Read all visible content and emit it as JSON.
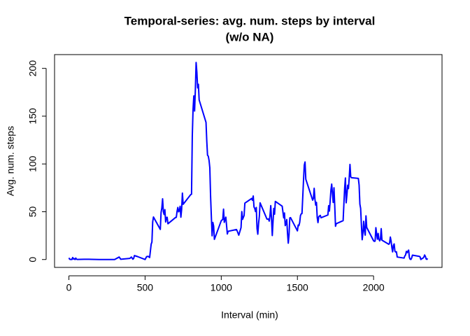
{
  "chart_data": {
    "type": "line",
    "title": "Temporal-series: avg. num. steps by interval",
    "subtitle": "(w/o NA)",
    "xlabel": "Interval (min)",
    "ylabel": "Avg. num. steps",
    "x": [
      0,
      5,
      10,
      15,
      20,
      25,
      30,
      35,
      40,
      45,
      50,
      55,
      100,
      150,
      200,
      300,
      330,
      340,
      400,
      410,
      420,
      425,
      430,
      450,
      500,
      510,
      520,
      530,
      540,
      545,
      550,
      555,
      600,
      605,
      610,
      615,
      620,
      625,
      630,
      635,
      640,
      645,
      650,
      700,
      705,
      710,
      715,
      720,
      725,
      730,
      735,
      740,
      745,
      750,
      800,
      805,
      810,
      815,
      820,
      825,
      830,
      835,
      840,
      845,
      850,
      855,
      900,
      905,
      910,
      915,
      920,
      925,
      930,
      935,
      940,
      945,
      950,
      955,
      1000,
      1010,
      1015,
      1020,
      1030,
      1040,
      1045,
      1100,
      1105,
      1115,
      1130,
      1135,
      1140,
      1150,
      1155,
      1200,
      1205,
      1210,
      1215,
      1220,
      1225,
      1230,
      1235,
      1240,
      1245,
      1250,
      1255,
      1300,
      1310,
      1315,
      1320,
      1325,
      1330,
      1335,
      1340,
      1345,
      1350,
      1355,
      1400,
      1410,
      1415,
      1420,
      1425,
      1430,
      1435,
      1440,
      1445,
      1450,
      1455,
      1500,
      1505,
      1510,
      1515,
      1520,
      1525,
      1530,
      1535,
      1540,
      1545,
      1550,
      1555,
      1600,
      1605,
      1610,
      1615,
      1620,
      1625,
      1630,
      1635,
      1640,
      1645,
      1650,
      1655,
      1700,
      1705,
      1710,
      1715,
      1720,
      1725,
      1730,
      1735,
      1740,
      1745,
      1750,
      1755,
      1800,
      1805,
      1810,
      1815,
      1820,
      1825,
      1830,
      1835,
      1840,
      1845,
      1850,
      1855,
      1900,
      1905,
      1910,
      1915,
      1920,
      1925,
      1930,
      1935,
      1940,
      1945,
      1950,
      1955,
      2000,
      2005,
      2010,
      2015,
      2020,
      2025,
      2030,
      2035,
      2040,
      2045,
      2050,
      2055,
      2100,
      2105,
      2110,
      2115,
      2120,
      2125,
      2130,
      2135,
      2140,
      2145,
      2150,
      2155,
      2200,
      2205,
      2210,
      2215,
      2220,
      2225,
      2230,
      2235,
      2240,
      2245,
      2250,
      2255,
      2300,
      2305,
      2310,
      2315,
      2320,
      2325,
      2330,
      2335,
      2340,
      2345,
      2350,
      2355
    ],
    "series": [
      {
        "name": "Avg. num. steps",
        "color": "#0000ff",
        "values": [
          1.7,
          0.3,
          0.1,
          0.2,
          0.1,
          2.1,
          0.5,
          0.9,
          0,
          1.5,
          0.3,
          0.1,
          0.3,
          0.2,
          0,
          0,
          2.6,
          0.3,
          1.2,
          2.6,
          0.3,
          1.1,
          4.1,
          3.1,
          0,
          3,
          3.3,
          2.1,
          16,
          18.3,
          39.4,
          44.5,
          31.5,
          49.3,
          53.8,
          63.5,
          50,
          47.1,
          52.2,
          39.3,
          44,
          44.2,
          37.4,
          44,
          44.1,
          50.5,
          54.5,
          49.9,
          51,
          55.7,
          44.3,
          52.3,
          69.5,
          57.8,
          68,
          68.3,
          129.4,
          157.5,
          171.2,
          155.4,
          177.3,
          206.2,
          195.9,
          179.6,
          183.4,
          167,
          143.5,
          124,
          109.1,
          108.1,
          103.7,
          96,
          66.2,
          45.2,
          24.8,
          38.8,
          35,
          21.1,
          40.6,
          42,
          52.7,
          38.9,
          44.3,
          26.7,
          29.5,
          31.4,
          29.7,
          25.5,
          33.4,
          50.2,
          42,
          46,
          59,
          63.9,
          62,
          66.5,
          55,
          53.4,
          50.2,
          54.5,
          32.4,
          26.5,
          37.7,
          45.1,
          59.3,
          42.3,
          42.4,
          40.2,
          46.2,
          56.4,
          42.8,
          25.1,
          40,
          53.5,
          47.4,
          60.8,
          55.8,
          43.6,
          48.7,
          35.5,
          37.5,
          41.8,
          27.5,
          17.1,
          26.1,
          43.6,
          43.8,
          30,
          36.1,
          35.5,
          38.8,
          46,
          47.8,
          48.1,
          65.3,
          82.9,
          98.7,
          102.1,
          84,
          62.1,
          64.1,
          74.5,
          63.2,
          56.9,
          59.8,
          43.9,
          38.6,
          44.7,
          45.5,
          46.2,
          43.7,
          46.6,
          56.3,
          50.7,
          61.2,
          72.7,
          78.9,
          68.9,
          59.7,
          75.1,
          56.5,
          34.8,
          37.5,
          40.7,
          58,
          74.7,
          85.3,
          59.3,
          67.8,
          77.7,
          74.2,
          85.3,
          99.5,
          86.6,
          85.6,
          84.9,
          77.8,
          58,
          53.4,
          36.3,
          20.7,
          27.4,
          40,
          30.2,
          25.5,
          45.7,
          33.5,
          19.6,
          19,
          19.3,
          33.3,
          26.8,
          21.2,
          27.3,
          21.3,
          19.5,
          21.3,
          32.3,
          20.2,
          15.9,
          17.2,
          23.5,
          19.2,
          12.5,
          8,
          14.7,
          16.3,
          8.7,
          7.8,
          8.1,
          2.6,
          1.5,
          3.7,
          4.8,
          8.5,
          7.1,
          8.7,
          9.8,
          2.2,
          0.3,
          0.1,
          1.6,
          4.6,
          3.3,
          2.8,
          0,
          0.8,
          1,
          1.6,
          2.6,
          4.7,
          3.3,
          0.6,
          0.2,
          1.1
        ]
      }
    ],
    "xlim": [
      -94.2,
      2449.2
    ],
    "xticks": [
      0,
      500,
      1000,
      1500,
      2000
    ],
    "ylim": [
      -8.25,
      214.42
    ],
    "yticks": [
      0,
      50,
      100,
      150,
      200
    ]
  }
}
